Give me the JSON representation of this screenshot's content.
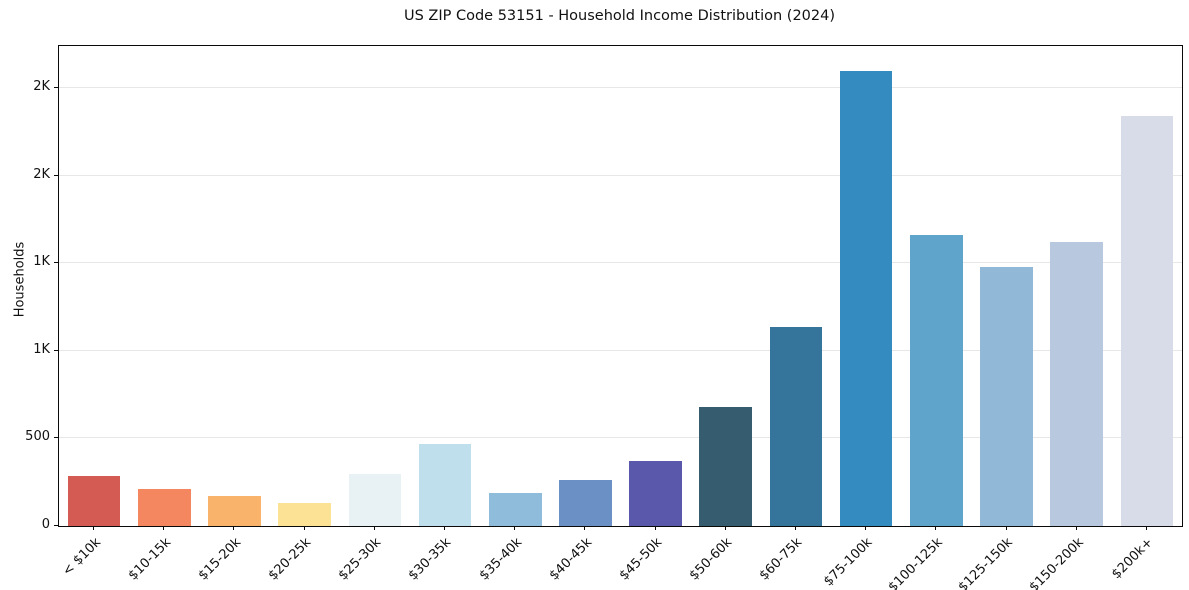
{
  "chart_data": {
    "type": "bar",
    "title": "US ZIP Code 53151 - Household Income Distribution (2024)",
    "xlabel": "",
    "ylabel": "Households",
    "categories": [
      "< $10k",
      "$10-15k",
      "$15-20k",
      "$20-25k",
      "$25-30k",
      "$30-35k",
      "$35-40k",
      "$40-45k",
      "$45-50k",
      "$50-60k",
      "$60-75k",
      "$75-100k",
      "$100-125k",
      "$125-150k",
      "$150-200k",
      "$200k+"
    ],
    "values": [
      285,
      210,
      170,
      130,
      295,
      470,
      190,
      260,
      370,
      680,
      1135,
      2600,
      1660,
      1480,
      1620,
      2340
    ],
    "bar_colors": [
      "#d45b53",
      "#f4875f",
      "#f9b36b",
      "#fbe295",
      "#e8f2f4",
      "#bedfeb",
      "#8fbcdb",
      "#6a90c5",
      "#5a58aa",
      "#365c6f",
      "#35749b",
      "#338bbf",
      "#5fa4cb",
      "#92b8d7",
      "#b7c8df",
      "#d8dbe8"
    ],
    "ylim": [
      0,
      2740
    ],
    "yticks": {
      "values": [
        0,
        500,
        1000,
        1500,
        2000,
        2500
      ],
      "labels": [
        "0",
        "500",
        "1K",
        "1K",
        "2K",
        "2K"
      ]
    },
    "grid": "horizontal",
    "legend": "none",
    "colors": {
      "background": "#ffffff",
      "gridline": "#e7e7e7",
      "frame": "#0a0a0a",
      "text": "#111111"
    }
  }
}
